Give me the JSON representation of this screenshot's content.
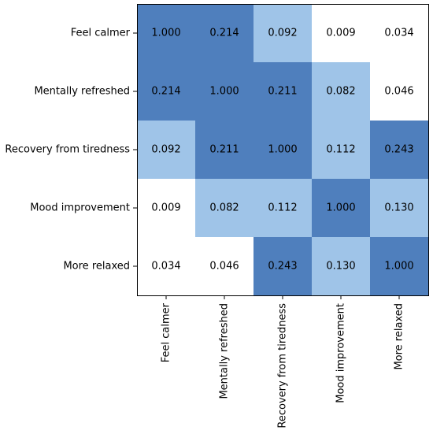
{
  "chart_data": {
    "type": "heatmap",
    "title": "",
    "xlabel": "",
    "ylabel": "",
    "x_categories": [
      "Feel calmer",
      "Mentally refreshed",
      "Recovery from tiredness",
      "Mood improvement",
      "More relaxed"
    ],
    "y_categories": [
      "Feel calmer",
      "Mentally refreshed",
      "Recovery from tiredness",
      "Mood improvement",
      "More relaxed"
    ],
    "values": [
      [
        1.0,
        0.214,
        0.092,
        0.009,
        0.034
      ],
      [
        0.214,
        1.0,
        0.211,
        0.082,
        0.046
      ],
      [
        0.092,
        0.211,
        1.0,
        0.112,
        0.243
      ],
      [
        0.009,
        0.082,
        0.112,
        1.0,
        0.13
      ],
      [
        0.034,
        0.046,
        0.243,
        0.13,
        1.0
      ]
    ],
    "value_labels": [
      [
        "1.000",
        "0.214",
        "0.092",
        "0.009",
        "0.034"
      ],
      [
        "0.214",
        "1.000",
        "0.211",
        "0.082",
        "0.046"
      ],
      [
        "0.092",
        "0.211",
        "1.000",
        "0.112",
        "0.243"
      ],
      [
        "0.009",
        "0.082",
        "0.112",
        "1.000",
        "0.130"
      ],
      [
        "0.034",
        "0.046",
        "0.243",
        "0.130",
        "1.000"
      ]
    ],
    "color_bins": [
      {
        "min": 0.0,
        "max": 0.08,
        "color": "#ffffff"
      },
      {
        "min": 0.08,
        "max": 0.15,
        "color": "#9fc4e8"
      },
      {
        "min": 0.15,
        "max": 1.01,
        "color": "#4f7fbd"
      }
    ],
    "grid": false,
    "legend": "none",
    "x_tick_rotation": "vertical"
  }
}
